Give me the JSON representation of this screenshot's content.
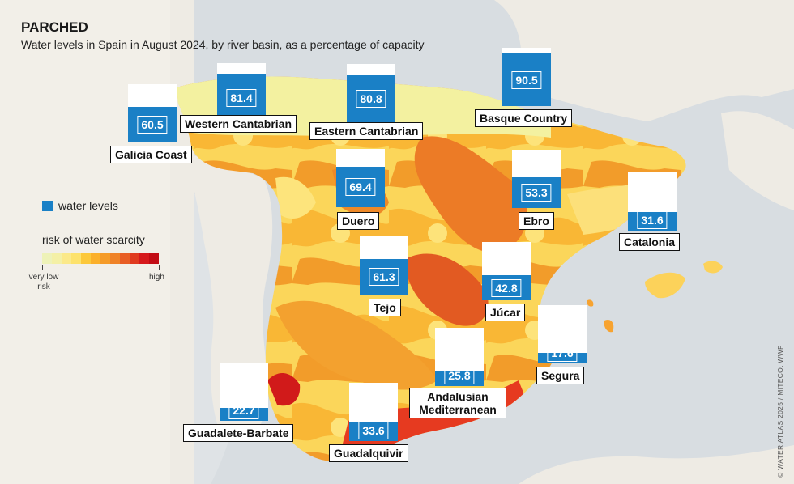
{
  "title": "PARCHED",
  "subtitle": "Water levels in Spain in August 2024, by river basin, as a percentage of capacity",
  "credit": "© WATER ATLAS 2025 / MITECO, WWF",
  "legend": {
    "water_levels": "water levels",
    "risk_title": "risk of water scarcity",
    "low": "very low risk",
    "high": "high",
    "scale_colors": [
      "#eef2b8",
      "#f4f0a6",
      "#fbe98a",
      "#fde26c",
      "#fcc83a",
      "#fbb02a",
      "#f59b28",
      "#ef8227",
      "#e85d24",
      "#e03a1f",
      "#d6191c",
      "#c20c15"
    ],
    "water_color": "#1a80c6"
  },
  "basins": [
    {
      "name": "Galicia Coast",
      "value": 60.5,
      "value_text": "60.5"
    },
    {
      "name": "Western Cantabrian",
      "value": 81.4,
      "value_text": "81.4"
    },
    {
      "name": "Eastern Cantabrian",
      "value": 80.8,
      "value_text": "80.8"
    },
    {
      "name": "Basque Country",
      "value": 90.5,
      "value_text": "90.5"
    },
    {
      "name": "Duero",
      "value": 69.4,
      "value_text": "69.4"
    },
    {
      "name": "Ebro",
      "value": 53.3,
      "value_text": "53.3"
    },
    {
      "name": "Catalonia",
      "value": 31.6,
      "value_text": "31.6"
    },
    {
      "name": "Tejo",
      "value": 61.3,
      "value_text": "61.3"
    },
    {
      "name": "Júcar",
      "value": 42.8,
      "value_text": "42.8"
    },
    {
      "name": "Segura",
      "value": 17.6,
      "value_text": "17.6"
    },
    {
      "name": "Andalusian Mediterranean",
      "value": 25.8,
      "value_text": "25.8"
    },
    {
      "name": "Guadalete-Barbate",
      "value": 22.7,
      "value_text": "22.7"
    },
    {
      "name": "Guadalquivir",
      "value": 33.6,
      "value_text": "33.6"
    }
  ]
}
